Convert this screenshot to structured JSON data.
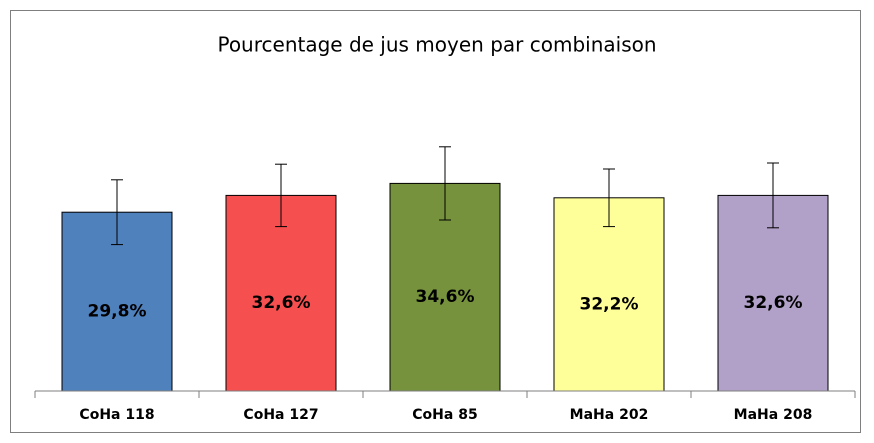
{
  "chart_data": {
    "type": "bar",
    "title": "Pourcentage de jus moyen par combinaison",
    "categories": [
      "CoHa 118",
      "CoHa 127",
      "CoHa 85",
      "MaHa 202",
      "MaHa 208"
    ],
    "values": [
      29.8,
      32.6,
      34.6,
      32.2,
      32.6
    ],
    "value_labels": [
      "29,8%",
      "32,6%",
      "34,6%",
      "32,2%",
      "32,6%"
    ],
    "errors": [
      5.4,
      5.2,
      6.1,
      4.8,
      5.4
    ],
    "colors": [
      "#4f81bd",
      "#f64f4f",
      "#76923c",
      "#ffff99",
      "#b1a0c7"
    ],
    "ylim": [
      0,
      50
    ],
    "grid": false
  }
}
